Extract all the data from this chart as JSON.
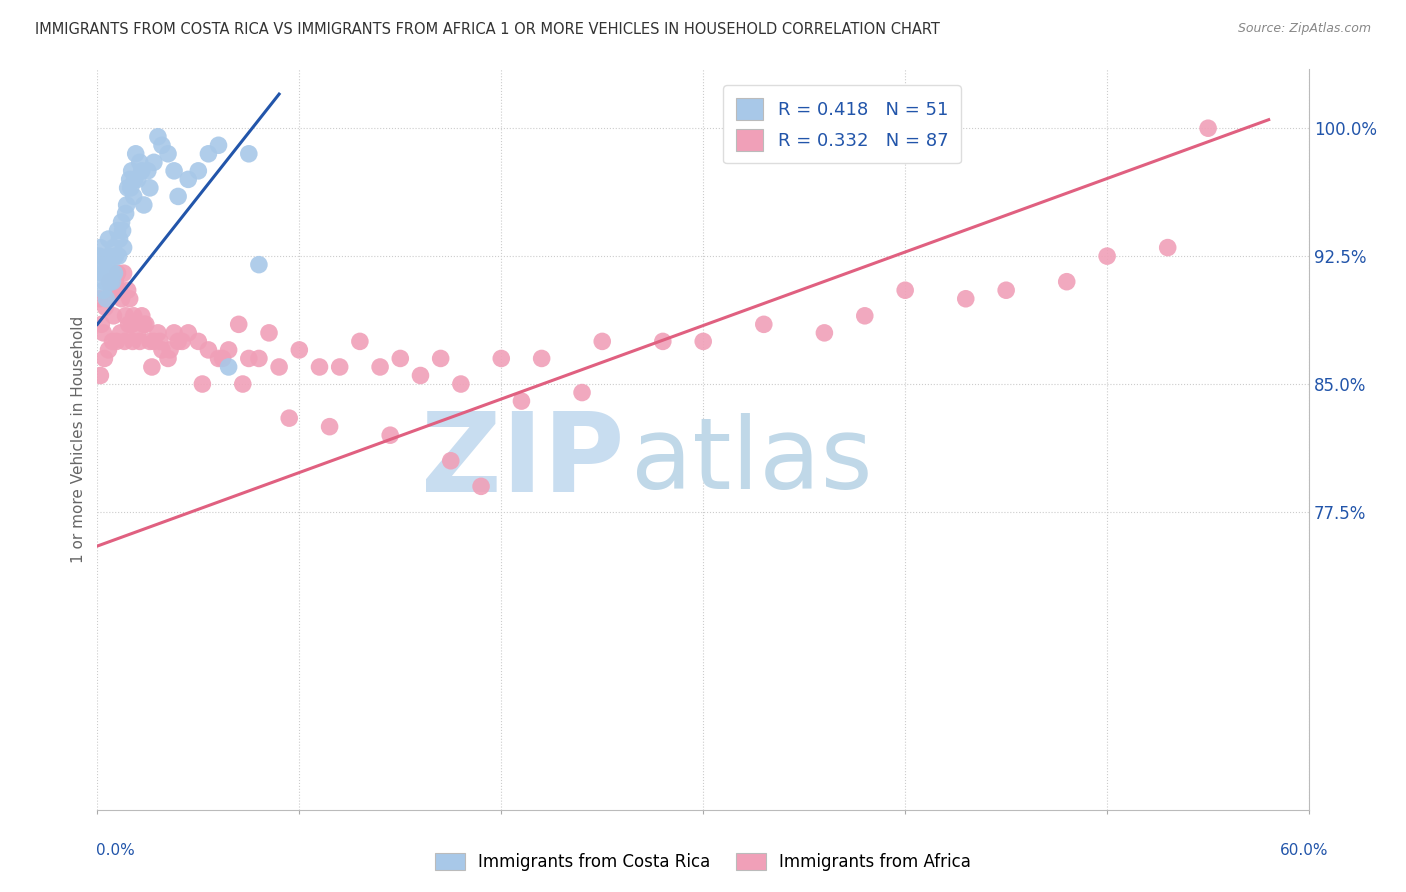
{
  "title": "IMMIGRANTS FROM COSTA RICA VS IMMIGRANTS FROM AFRICA 1 OR MORE VEHICLES IN HOUSEHOLD CORRELATION CHART",
  "source": "Source: ZipAtlas.com",
  "ylabel": "1 or more Vehicles in Household",
  "xmin": 0.0,
  "xmax": 60.0,
  "ymin": 60.0,
  "ymax": 103.5,
  "blue_R": 0.418,
  "blue_N": 51,
  "pink_R": 0.332,
  "pink_N": 87,
  "blue_color": "#a8c8e8",
  "blue_line_color": "#2255aa",
  "pink_color": "#f0a0b8",
  "pink_line_color": "#e06080",
  "watermark_zip": "ZIP",
  "watermark_atlas": "atlas",
  "watermark_color_zip": "#c8ddf0",
  "watermark_color_atlas": "#c0d8e8",
  "ytick_positions": [
    77.5,
    85.0,
    92.5,
    100.0
  ],
  "ytick_labels": [
    "77.5%",
    "85.0%",
    "92.5%",
    "100.0%"
  ],
  "blue_scatter_x": [
    0.1,
    0.15,
    0.2,
    0.25,
    0.3,
    0.35,
    0.4,
    0.5,
    0.55,
    0.6,
    0.7,
    0.75,
    0.8,
    0.9,
    1.0,
    1.1,
    1.2,
    1.3,
    1.4,
    1.5,
    1.6,
    1.7,
    1.8,
    1.9,
    2.0,
    2.1,
    2.2,
    2.5,
    2.8,
    3.0,
    3.2,
    3.5,
    4.0,
    4.5,
    5.0,
    5.5,
    6.0,
    0.45,
    0.65,
    0.85,
    1.05,
    1.25,
    1.45,
    1.65,
    1.85,
    2.3,
    2.6,
    3.8,
    6.5,
    7.5,
    8.0
  ],
  "blue_scatter_y": [
    92.5,
    93.0,
    92.0,
    91.5,
    90.5,
    91.0,
    91.5,
    92.0,
    93.5,
    92.5,
    91.5,
    91.0,
    93.0,
    92.5,
    94.0,
    93.5,
    94.5,
    93.0,
    95.0,
    96.5,
    97.0,
    97.5,
    96.0,
    98.5,
    97.0,
    98.0,
    97.5,
    97.5,
    98.0,
    99.5,
    99.0,
    98.5,
    96.0,
    97.0,
    97.5,
    98.5,
    99.0,
    90.0,
    91.0,
    91.5,
    92.5,
    94.0,
    95.5,
    96.5,
    97.0,
    95.5,
    96.5,
    97.5,
    86.0,
    98.5,
    92.0
  ],
  "pink_scatter_x": [
    0.1,
    0.2,
    0.3,
    0.4,
    0.5,
    0.6,
    0.7,
    0.8,
    0.9,
    1.0,
    1.1,
    1.2,
    1.3,
    1.4,
    1.5,
    1.6,
    1.7,
    1.8,
    2.0,
    2.2,
    2.4,
    2.6,
    2.8,
    3.0,
    3.2,
    3.5,
    3.8,
    4.0,
    4.5,
    5.0,
    5.5,
    6.0,
    6.5,
    7.0,
    7.5,
    8.0,
    8.5,
    9.0,
    10.0,
    11.0,
    12.0,
    13.0,
    14.0,
    15.0,
    16.0,
    17.0,
    18.0,
    20.0,
    22.0,
    25.0,
    28.0,
    30.0,
    33.0,
    36.0,
    38.0,
    40.0,
    43.0,
    45.0,
    48.0,
    50.0,
    53.0,
    0.15,
    0.35,
    0.55,
    0.75,
    0.95,
    1.15,
    1.35,
    1.55,
    1.75,
    2.1,
    2.3,
    2.7,
    3.1,
    3.6,
    4.2,
    5.2,
    6.2,
    7.2,
    9.5,
    11.5,
    14.5,
    17.5,
    21.0,
    55.0,
    19.0,
    24.0
  ],
  "pink_scatter_y": [
    90.0,
    88.5,
    88.0,
    89.5,
    90.0,
    91.0,
    90.5,
    89.0,
    91.0,
    91.5,
    90.5,
    90.0,
    91.5,
    89.0,
    90.5,
    90.0,
    88.5,
    89.0,
    88.0,
    89.0,
    88.5,
    87.5,
    87.5,
    88.0,
    87.0,
    86.5,
    88.0,
    87.5,
    88.0,
    87.5,
    87.0,
    86.5,
    87.0,
    88.5,
    86.5,
    86.5,
    88.0,
    86.0,
    87.0,
    86.0,
    86.0,
    87.5,
    86.0,
    86.5,
    85.5,
    86.5,
    85.0,
    86.5,
    86.5,
    87.5,
    87.5,
    87.5,
    88.5,
    88.0,
    89.0,
    90.5,
    90.0,
    90.5,
    91.0,
    92.5,
    93.0,
    85.5,
    86.5,
    87.0,
    87.5,
    87.5,
    88.0,
    87.5,
    88.5,
    87.5,
    87.5,
    88.5,
    86.0,
    87.5,
    87.0,
    87.5,
    85.0,
    86.5,
    85.0,
    83.0,
    82.5,
    82.0,
    80.5,
    84.0,
    100.0,
    79.0,
    84.5
  ],
  "blue_trend_x0": 0.0,
  "blue_trend_x1": 9.0,
  "blue_trend_y0": 88.5,
  "blue_trend_y1": 102.0,
  "pink_trend_x0": 0.0,
  "pink_trend_x1": 58.0,
  "pink_trend_y0": 75.5,
  "pink_trend_y1": 100.5
}
